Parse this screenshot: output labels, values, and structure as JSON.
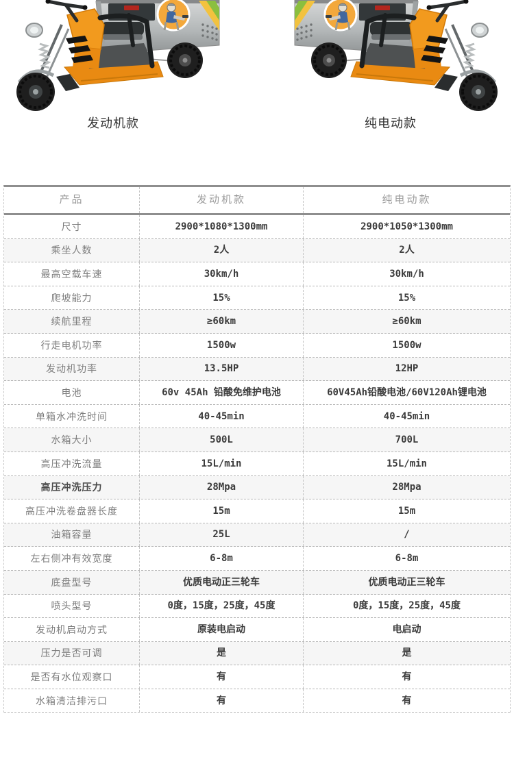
{
  "products": [
    {
      "caption": "发动机款"
    },
    {
      "caption": "纯电动款"
    }
  ],
  "table": {
    "header": [
      "产品",
      "发动机款",
      "纯电动款"
    ],
    "rows": [
      {
        "label": "尺寸",
        "v1": "2900*1080*1300mm",
        "v2": "2900*1050*1300mm",
        "shaded": false,
        "labelBold": false
      },
      {
        "label": "乘坐人数",
        "v1": "2人",
        "v2": "2人",
        "shaded": true,
        "labelBold": false
      },
      {
        "label": "最高空载车速",
        "v1": "30km/h",
        "v2": "30km/h",
        "shaded": false,
        "labelBold": false
      },
      {
        "label": "爬坡能力",
        "v1": "15%",
        "v2": "15%",
        "shaded": false,
        "labelBold": false
      },
      {
        "label": "续航里程",
        "v1": "≥60km",
        "v2": "≥60km",
        "shaded": true,
        "labelBold": false
      },
      {
        "label": "行走电机功率",
        "v1": "1500w",
        "v2": "1500w",
        "shaded": false,
        "labelBold": false
      },
      {
        "label": "发动机功率",
        "v1": "13.5HP",
        "v2": "12HP",
        "shaded": true,
        "labelBold": false
      },
      {
        "label": "电池",
        "v1": "60v 45Ah 铅酸免维护电池",
        "v2": "60V45Ah铅酸电池/60V120Ah锂电池",
        "shaded": false,
        "labelBold": false
      },
      {
        "label": "单箱水冲洗时间",
        "v1": "40-45min",
        "v2": "40-45min",
        "shaded": false,
        "labelBold": false
      },
      {
        "label": "水箱大小",
        "v1": "500L",
        "v2": "700L",
        "shaded": true,
        "labelBold": false
      },
      {
        "label": "高压冲洗流量",
        "v1": "15L/min",
        "v2": "15L/min",
        "shaded": false,
        "labelBold": false
      },
      {
        "label": "高压冲洗压力",
        "v1": "28Mpa",
        "v2": "28Mpa",
        "shaded": true,
        "labelBold": true
      },
      {
        "label": "高压冲洗卷盘器长度",
        "v1": "15m",
        "v2": "15m",
        "shaded": false,
        "labelBold": false
      },
      {
        "label": "油箱容量",
        "v1": "25L",
        "v2": "/",
        "shaded": true,
        "labelBold": false
      },
      {
        "label": "左右侧冲有效宽度",
        "v1": "6-8m",
        "v2": "6-8m",
        "shaded": false,
        "labelBold": false
      },
      {
        "label": "底盘型号",
        "v1": "优质电动正三轮车",
        "v2": "优质电动正三轮车",
        "shaded": true,
        "labelBold": false
      },
      {
        "label": "喷头型号",
        "v1": "0度，15度，25度，45度",
        "v2": "0度，15度，25度，45度",
        "shaded": false,
        "labelBold": false
      },
      {
        "label": "发动机启动方式",
        "v1": "原装电启动",
        "v2": "电启动",
        "shaded": false,
        "labelBold": false
      },
      {
        "label": "压力是否可调",
        "v1": "是",
        "v2": "是",
        "shaded": true,
        "labelBold": false
      },
      {
        "label": "是否有水位观察口",
        "v1": "有",
        "v2": "有",
        "shaded": false,
        "labelBold": false
      },
      {
        "label": "水箱清洁排污口",
        "v1": "有",
        "v2": "有",
        "shaded": false,
        "labelBold": false
      }
    ]
  },
  "theme": {
    "accent_orange": "#f29a1e",
    "steel_gray": "#c2c6c7",
    "table_rule": "#8e8e8e",
    "shaded_row": "#f6f6f6",
    "label_text": "#7d7d7d",
    "value_text": "#3b3b3b",
    "header_text": "#9a9a9a"
  }
}
